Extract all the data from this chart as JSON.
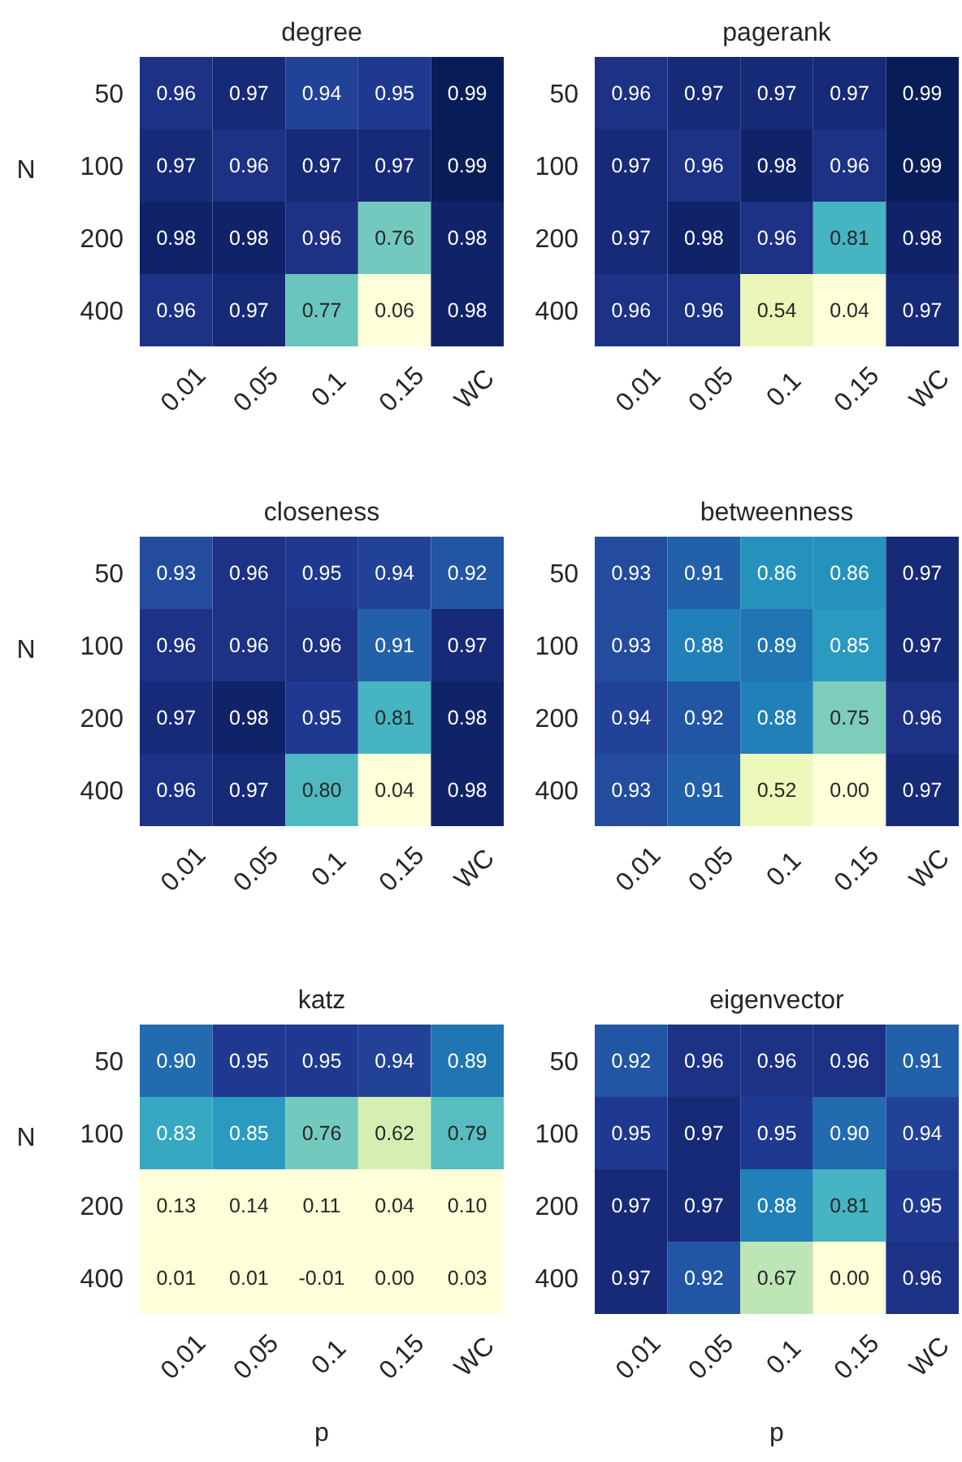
{
  "chart_data": [
    {
      "type": "heatmap",
      "title": "degree",
      "ylabel": "N",
      "categories": [
        "0.01",
        "0.05",
        "0.1",
        "0.15",
        "WC"
      ],
      "y_categories": [
        "50",
        "100",
        "200",
        "400"
      ],
      "cells": [
        [
          0.96,
          0.97,
          0.94,
          0.95,
          0.99
        ],
        [
          0.97,
          0.96,
          0.97,
          0.97,
          0.99
        ],
        [
          0.98,
          0.98,
          0.96,
          0.76,
          0.98
        ],
        [
          0.96,
          0.97,
          0.77,
          0.06,
          0.98
        ]
      ],
      "cell_labels": [
        [
          "0.96",
          "0.97",
          "0.94",
          "0.95",
          "0.99"
        ],
        [
          "0.97",
          "0.96",
          "0.97",
          "0.97",
          "0.99"
        ],
        [
          "0.98",
          "0.98",
          "0.96",
          "0.76",
          "0.98"
        ],
        [
          "0.96",
          "0.97",
          "0.77",
          "0.06",
          "0.98"
        ]
      ]
    },
    {
      "type": "heatmap",
      "title": "pagerank",
      "categories": [
        "0.01",
        "0.05",
        "0.1",
        "0.15",
        "WC"
      ],
      "y_categories": [
        "50",
        "100",
        "200",
        "400"
      ],
      "cells": [
        [
          0.96,
          0.97,
          0.97,
          0.97,
          0.99
        ],
        [
          0.97,
          0.96,
          0.98,
          0.96,
          0.99
        ],
        [
          0.97,
          0.98,
          0.96,
          0.81,
          0.98
        ],
        [
          0.96,
          0.96,
          0.54,
          0.04,
          0.97
        ]
      ],
      "cell_labels": [
        [
          "0.96",
          "0.97",
          "0.97",
          "0.97",
          "0.99"
        ],
        [
          "0.97",
          "0.96",
          "0.98",
          "0.96",
          "0.99"
        ],
        [
          "0.97",
          "0.98",
          "0.96",
          "0.81",
          "0.98"
        ],
        [
          "0.96",
          "0.96",
          "0.54",
          "0.04",
          "0.97"
        ]
      ]
    },
    {
      "type": "heatmap",
      "title": "closeness",
      "ylabel": "N",
      "categories": [
        "0.01",
        "0.05",
        "0.1",
        "0.15",
        "WC"
      ],
      "y_categories": [
        "50",
        "100",
        "200",
        "400"
      ],
      "cells": [
        [
          0.93,
          0.96,
          0.95,
          0.94,
          0.92
        ],
        [
          0.96,
          0.96,
          0.96,
          0.91,
          0.97
        ],
        [
          0.97,
          0.98,
          0.95,
          0.81,
          0.98
        ],
        [
          0.96,
          0.97,
          0.8,
          0.04,
          0.98
        ]
      ],
      "cell_labels": [
        [
          "0.93",
          "0.96",
          "0.95",
          "0.94",
          "0.92"
        ],
        [
          "0.96",
          "0.96",
          "0.96",
          "0.91",
          "0.97"
        ],
        [
          "0.97",
          "0.98",
          "0.95",
          "0.81",
          "0.98"
        ],
        [
          "0.96",
          "0.97",
          "0.80",
          "0.04",
          "0.98"
        ]
      ]
    },
    {
      "type": "heatmap",
      "title": "betweenness",
      "categories": [
        "0.01",
        "0.05",
        "0.1",
        "0.15",
        "WC"
      ],
      "y_categories": [
        "50",
        "100",
        "200",
        "400"
      ],
      "cells": [
        [
          0.93,
          0.91,
          0.86,
          0.86,
          0.97
        ],
        [
          0.93,
          0.88,
          0.89,
          0.85,
          0.97
        ],
        [
          0.94,
          0.92,
          0.88,
          0.75,
          0.96
        ],
        [
          0.93,
          0.91,
          0.52,
          0.0,
          0.97
        ]
      ],
      "cell_labels": [
        [
          "0.93",
          "0.91",
          "0.86",
          "0.86",
          "0.97"
        ],
        [
          "0.93",
          "0.88",
          "0.89",
          "0.85",
          "0.97"
        ],
        [
          "0.94",
          "0.92",
          "0.88",
          "0.75",
          "0.96"
        ],
        [
          "0.93",
          "0.91",
          "0.52",
          "0.00",
          "0.97"
        ]
      ]
    },
    {
      "type": "heatmap",
      "title": "katz",
      "ylabel": "N",
      "xlabel": "p",
      "categories": [
        "0.01",
        "0.05",
        "0.1",
        "0.15",
        "WC"
      ],
      "y_categories": [
        "50",
        "100",
        "200",
        "400"
      ],
      "cells": [
        [
          0.9,
          0.95,
          0.95,
          0.94,
          0.89
        ],
        [
          0.83,
          0.85,
          0.76,
          0.62,
          0.79
        ],
        [
          0.13,
          0.14,
          0.11,
          0.04,
          0.1
        ],
        [
          0.01,
          0.01,
          -0.01,
          0.0,
          0.03
        ]
      ],
      "cell_labels": [
        [
          "0.90",
          "0.95",
          "0.95",
          "0.94",
          "0.89"
        ],
        [
          "0.83",
          "0.85",
          "0.76",
          "0.62",
          "0.79"
        ],
        [
          "0.13",
          "0.14",
          "0.11",
          "0.04",
          "0.10"
        ],
        [
          "0.01",
          "0.01",
          "-0.01",
          "0.00",
          "0.03"
        ]
      ]
    },
    {
      "type": "heatmap",
      "title": "eigenvector",
      "xlabel": "p",
      "categories": [
        "0.01",
        "0.05",
        "0.1",
        "0.15",
        "WC"
      ],
      "y_categories": [
        "50",
        "100",
        "200",
        "400"
      ],
      "cells": [
        [
          0.92,
          0.96,
          0.96,
          0.96,
          0.91
        ],
        [
          0.95,
          0.97,
          0.95,
          0.9,
          0.94
        ],
        [
          0.97,
          0.97,
          0.88,
          0.81,
          0.95
        ],
        [
          0.97,
          0.92,
          0.67,
          0.0,
          0.96
        ]
      ],
      "cell_labels": [
        [
          "0.92",
          "0.96",
          "0.96",
          "0.96",
          "0.91"
        ],
        [
          "0.95",
          "0.97",
          "0.95",
          "0.90",
          "0.94"
        ],
        [
          "0.97",
          "0.97",
          "0.88",
          "0.81",
          "0.95"
        ],
        [
          "0.97",
          "0.92",
          "0.67",
          "0.00",
          "0.96"
        ]
      ]
    }
  ]
}
